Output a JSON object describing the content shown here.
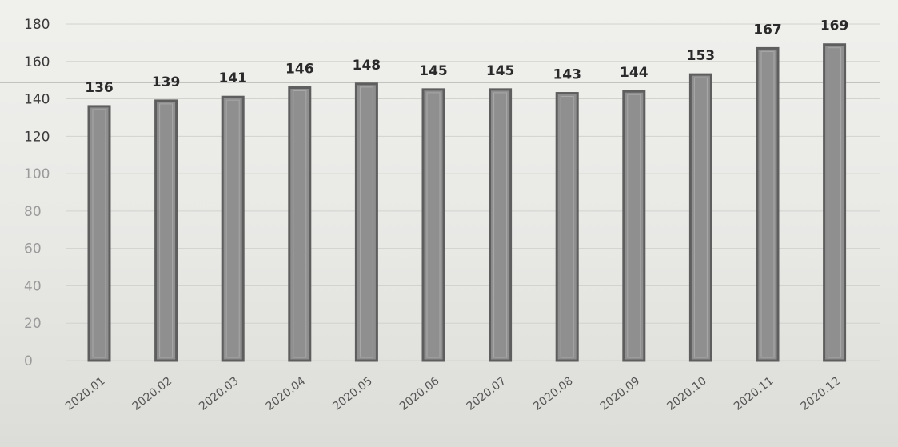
{
  "chart_data": {
    "type": "bar",
    "categories": [
      "2020.01",
      "2020.02",
      "2020.03",
      "2020.04",
      "2020.05",
      "2020.06",
      "2020.07",
      "2020.08",
      "2020.09",
      "2020.10",
      "2020.11",
      "2020.12"
    ],
    "values": [
      136,
      139,
      141,
      146,
      148,
      145,
      145,
      143,
      144,
      153,
      167,
      169
    ],
    "data_labels": [
      "136",
      "139",
      "141",
      "146",
      "148",
      "145",
      "145",
      "143",
      "144",
      "153",
      "167",
      "169"
    ],
    "yticks": [
      0,
      20,
      40,
      60,
      80,
      100,
      120,
      140,
      160,
      180
    ],
    "ylim": [
      0,
      180
    ],
    "grid": true,
    "legend": "none",
    "title": "",
    "xlabel": "",
    "ylabel": "",
    "colors": {
      "bar_fill": "#8f8f8f",
      "bar_edge": "#5e5e5e",
      "grid": "#d2d2cf",
      "reference_line": "#a9a9a9"
    }
  }
}
